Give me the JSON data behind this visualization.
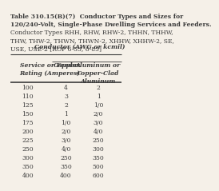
{
  "title_line1": "Table 310.15(B)(7)  Conductor Types and Sizes for",
  "title_line2": "120/240-Volt, Single-Phase Dwelling Services and Feeders.",
  "title_line3": "Conductor Types RHH, RHW, RHW-2, THHN, THHW,",
  "title_line4": "THW, THW-2, THWN, THWN-2, XHHW, XHHW-2, SE,",
  "title_line5": "USE, USE-2 [ROP 6-53, 6-85]",
  "col_header_main": "Conductor (AWG or kcmil)",
  "col_header_left": "Service or Feeder\nRating (Amperes)",
  "col_header_copper": "Copper",
  "col_header_alum": "Aluminum or\nCopper-Clad\nAluminum",
  "rows": [
    [
      "100",
      "4",
      "2"
    ],
    [
      "110",
      "3",
      "1"
    ],
    [
      "125",
      "2",
      "1/0"
    ],
    [
      "150",
      "1",
      "2/0"
    ],
    [
      "175",
      "1/0",
      "3/0"
    ],
    [
      "200",
      "2/0",
      "4/0"
    ],
    [
      "225",
      "3/0",
      "250"
    ],
    [
      "250",
      "4/0",
      "300"
    ],
    [
      "300",
      "250",
      "350"
    ],
    [
      "350",
      "350",
      "500"
    ],
    [
      "400",
      "400",
      "600"
    ]
  ],
  "bg_color": "#f5f0e8",
  "text_color": "#3a3a3a",
  "line_color": "#3a3a3a",
  "title_fontsize": 5.5,
  "header_fontsize": 5.5,
  "data_fontsize": 5.5
}
